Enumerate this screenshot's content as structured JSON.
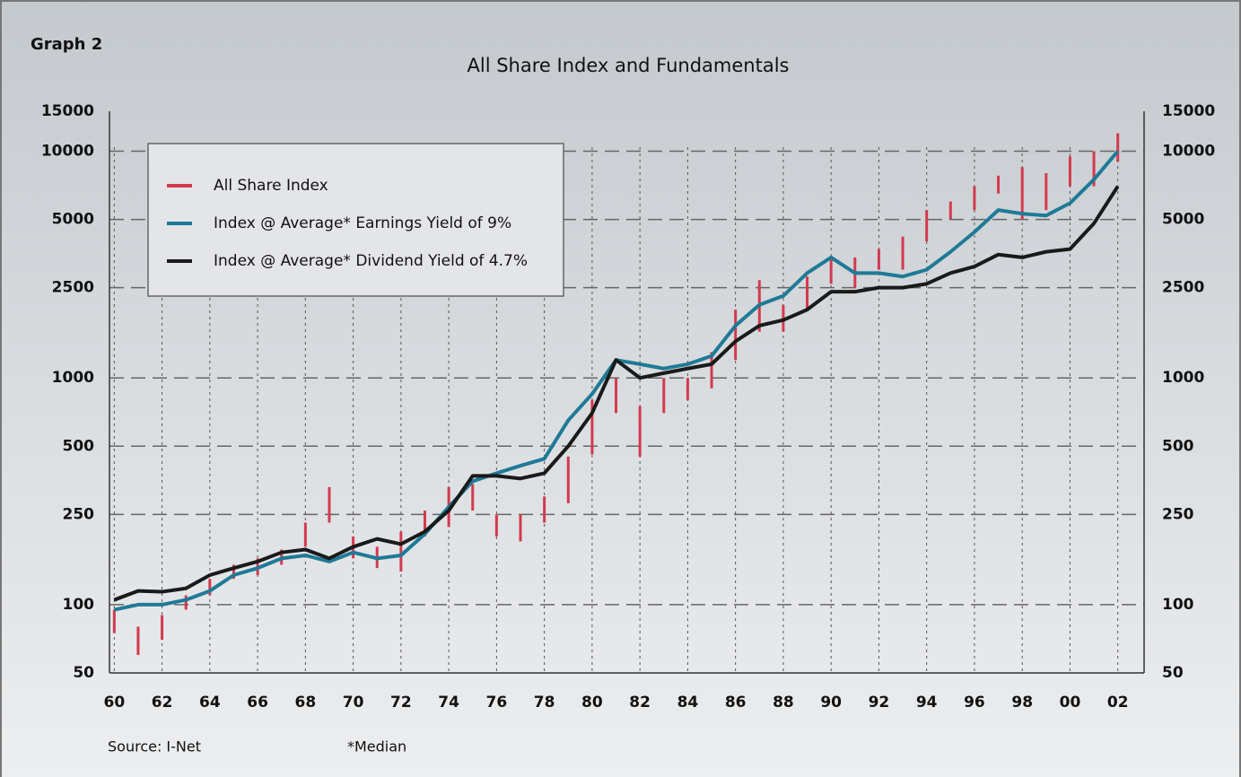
{
  "header": "Graph 2",
  "chart_data": {
    "type": "line",
    "title": "All Share Index and Fundamentals",
    "x": [
      1960,
      1961,
      1962,
      1963,
      1964,
      1965,
      1966,
      1967,
      1968,
      1969,
      1970,
      1971,
      1972,
      1973,
      1974,
      1975,
      1976,
      1977,
      1978,
      1979,
      1980,
      1981,
      1982,
      1983,
      1984,
      1985,
      1986,
      1987,
      1988,
      1989,
      1990,
      1991,
      1992,
      1993,
      1994,
      1995,
      1996,
      1997,
      1998,
      1999,
      2000,
      2001,
      2002
    ],
    "series": [
      {
        "name": "All Share Index",
        "color": "#d23a4e",
        "style": "range",
        "low": [
          75,
          60,
          70,
          95,
          110,
          130,
          135,
          150,
          180,
          230,
          160,
          145,
          140,
          200,
          220,
          260,
          200,
          190,
          230,
          280,
          460,
          700,
          450,
          700,
          800,
          900,
          1200,
          1600,
          1600,
          2000,
          2600,
          2500,
          3000,
          3000,
          4000,
          5000,
          5500,
          6500,
          5000,
          5500,
          7000,
          7000,
          9000
        ],
        "high": [
          95,
          80,
          90,
          110,
          130,
          150,
          160,
          175,
          230,
          330,
          200,
          180,
          210,
          260,
          330,
          340,
          250,
          250,
          300,
          450,
          800,
          1000,
          750,
          1000,
          1000,
          1300,
          2000,
          2700,
          2100,
          2800,
          3400,
          3400,
          3700,
          4200,
          5500,
          6000,
          7000,
          7800,
          8500,
          8000,
          9500,
          10000,
          12000
        ]
      },
      {
        "name": "Index @ Average* Earnings Yield of 9%",
        "color": "#1f7a96",
        "style": "line",
        "values": [
          95,
          100,
          100,
          105,
          115,
          135,
          145,
          160,
          165,
          155,
          170,
          160,
          165,
          205,
          270,
          350,
          380,
          410,
          440,
          650,
          850,
          1200,
          1150,
          1100,
          1150,
          1250,
          1700,
          2100,
          2300,
          2900,
          3400,
          2900,
          2900,
          2800,
          3000,
          3600,
          4400,
          5500,
          5300,
          5200,
          5900,
          7500,
          10000
        ]
      },
      {
        "name": "Index @ Average* Dividend Yield of 4.7%",
        "color": "#1a1a1a",
        "style": "line",
        "values": [
          105,
          115,
          114,
          118,
          135,
          145,
          155,
          170,
          175,
          160,
          180,
          195,
          185,
          210,
          260,
          370,
          370,
          360,
          380,
          500,
          700,
          1200,
          1000,
          1050,
          1100,
          1150,
          1450,
          1700,
          1800,
          2000,
          2400,
          2400,
          2500,
          2500,
          2600,
          2900,
          3100,
          3500,
          3400,
          3600,
          3700,
          4800,
          7000
        ]
      }
    ],
    "xlim": [
      1959.8,
      2003.1
    ],
    "xticks": [
      {
        "value": 1960,
        "label": "60"
      },
      {
        "value": 1962,
        "label": "62"
      },
      {
        "value": 1964,
        "label": "64"
      },
      {
        "value": 1966,
        "label": "66"
      },
      {
        "value": 1968,
        "label": "68"
      },
      {
        "value": 1970,
        "label": "70"
      },
      {
        "value": 1972,
        "label": "72"
      },
      {
        "value": 1974,
        "label": "74"
      },
      {
        "value": 1976,
        "label": "76"
      },
      {
        "value": 1978,
        "label": "78"
      },
      {
        "value": 1980,
        "label": "80"
      },
      {
        "value": 1982,
        "label": "82"
      },
      {
        "value": 1984,
        "label": "84"
      },
      {
        "value": 1986,
        "label": "86"
      },
      {
        "value": 1988,
        "label": "88"
      },
      {
        "value": 1990,
        "label": "90"
      },
      {
        "value": 1992,
        "label": "92"
      },
      {
        "value": 1994,
        "label": "94"
      },
      {
        "value": 1996,
        "label": "96"
      },
      {
        "value": 1998,
        "label": "98"
      },
      {
        "value": 2000,
        "label": "00"
      },
      {
        "value": 2002,
        "label": "02"
      }
    ],
    "ylim": [
      50,
      15000
    ],
    "yticks": [
      50,
      100,
      250,
      500,
      1000,
      2500,
      5000,
      10000,
      15000
    ],
    "y2lim": [
      50,
      15000
    ],
    "y2ticks": [
      50,
      100,
      250,
      500,
      1000,
      2500,
      5000,
      10000,
      15000
    ],
    "log_y": true,
    "grid": true,
    "legend": "upper left"
  },
  "footer": {
    "source": "Source:  I-Net",
    "note": "*Median"
  }
}
